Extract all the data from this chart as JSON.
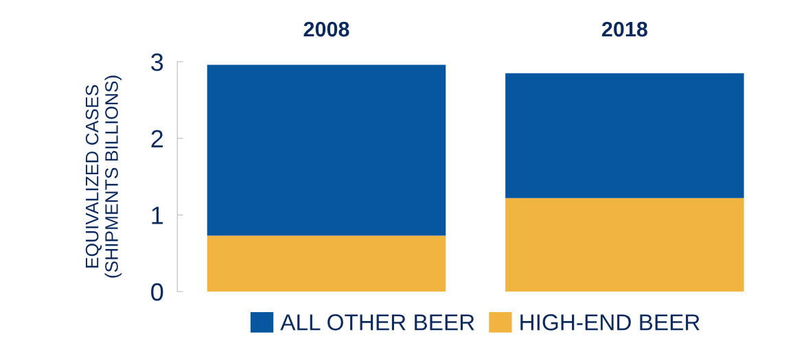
{
  "chart_data": {
    "type": "bar",
    "stacked": true,
    "ylabel": "EQUIVALIZED CASES\n(SHIPMENTS BILLIONS)",
    "categories": [
      "2008",
      "2018"
    ],
    "series": [
      {
        "name": "HIGH-END BEER",
        "color": "#f2b440",
        "values": [
          0.73,
          1.22
        ]
      },
      {
        "name": "ALL OTHER BEER",
        "color": "#0656a0",
        "values": [
          2.23,
          1.63
        ]
      }
    ],
    "ylim": [
      0,
      3
    ],
    "yticks": [
      0,
      1,
      2,
      3
    ],
    "grid": false,
    "legend": "bottom"
  }
}
